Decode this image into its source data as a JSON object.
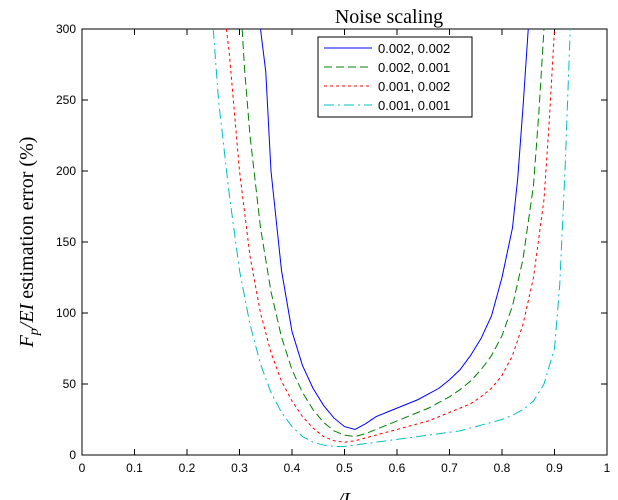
{
  "chart_data": {
    "type": "line",
    "xlim": [
      0,
      1
    ],
    "ylim": [
      0,
      300
    ],
    "xticks": [
      0,
      0.1,
      0.2,
      0.3,
      0.4,
      0.5,
      0.6,
      0.7,
      0.8,
      0.9,
      1
    ],
    "yticks": [
      0,
      50,
      100,
      150,
      200,
      250,
      300
    ],
    "xtick_labels": [
      "0",
      "0.1",
      "0.2",
      "0.3",
      "0.4",
      "0.5",
      "0.6",
      "0.7",
      "0.8",
      "0.9",
      "1"
    ],
    "ytick_labels": [
      "0",
      "50",
      "100",
      "150",
      "200",
      "250",
      "300"
    ],
    "ylabel": {
      "main": "F",
      "sub": "p",
      "mid": "/EI",
      "rest": " estimation error (%)"
    },
    "xlabel_partial": "/L",
    "legend": {
      "title": "Noise scaling",
      "position": "top-right"
    },
    "series": [
      {
        "name": "0.002, 0.002",
        "color": "#0000ff",
        "dash": "solid",
        "x": [
          0.34,
          0.35,
          0.36,
          0.38,
          0.4,
          0.42,
          0.44,
          0.46,
          0.48,
          0.5,
          0.52,
          0.54,
          0.56,
          0.58,
          0.6,
          0.62,
          0.64,
          0.66,
          0.68,
          0.7,
          0.72,
          0.74,
          0.76,
          0.78,
          0.8,
          0.82,
          0.83,
          0.84,
          0.85
        ],
        "y": [
          300,
          270,
          200,
          130,
          87,
          63,
          47,
          35,
          26,
          20,
          18,
          22,
          27,
          30,
          33,
          36,
          39,
          43,
          47,
          53,
          60,
          70,
          82,
          98,
          125,
          160,
          195,
          245,
          300
        ]
      },
      {
        "name": "0.002, 0.001",
        "color": "#008000",
        "dash": "8,4",
        "x": [
          0.305,
          0.31,
          0.32,
          0.34,
          0.36,
          0.38,
          0.4,
          0.42,
          0.44,
          0.46,
          0.48,
          0.5,
          0.52,
          0.54,
          0.56,
          0.58,
          0.6,
          0.62,
          0.64,
          0.66,
          0.68,
          0.7,
          0.72,
          0.74,
          0.76,
          0.78,
          0.8,
          0.82,
          0.84,
          0.86,
          0.87,
          0.88
        ],
        "y": [
          300,
          270,
          225,
          160,
          115,
          83,
          60,
          44,
          32,
          23,
          17,
          14,
          13,
          15,
          18,
          21,
          24,
          27,
          30,
          33,
          37,
          41,
          46,
          52,
          60,
          70,
          84,
          105,
          138,
          190,
          240,
          300
        ]
      },
      {
        "name": "0.001, 0.002",
        "color": "#ff0000",
        "dash": "3,3",
        "x": [
          0.275,
          0.28,
          0.3,
          0.32,
          0.34,
          0.36,
          0.38,
          0.4,
          0.42,
          0.44,
          0.46,
          0.48,
          0.5,
          0.52,
          0.54,
          0.56,
          0.58,
          0.6,
          0.62,
          0.64,
          0.66,
          0.68,
          0.7,
          0.72,
          0.74,
          0.76,
          0.78,
          0.8,
          0.82,
          0.84,
          0.86,
          0.88,
          0.89,
          0.9
        ],
        "y": [
          300,
          285,
          200,
          140,
          100,
          72,
          52,
          38,
          27,
          19,
          13,
          10,
          9,
          10,
          12,
          14,
          16,
          18,
          20,
          22,
          24,
          27,
          30,
          33,
          36,
          41,
          47,
          56,
          70,
          92,
          125,
          180,
          235,
          300
        ]
      },
      {
        "name": "0.001, 0.001",
        "color": "#00bfbf",
        "dash": "10,4,2,4",
        "x": [
          0.25,
          0.26,
          0.28,
          0.3,
          0.32,
          0.34,
          0.36,
          0.38,
          0.4,
          0.42,
          0.44,
          0.46,
          0.48,
          0.5,
          0.52,
          0.54,
          0.56,
          0.58,
          0.6,
          0.62,
          0.64,
          0.66,
          0.68,
          0.7,
          0.72,
          0.74,
          0.76,
          0.78,
          0.8,
          0.82,
          0.84,
          0.86,
          0.88,
          0.9,
          0.91,
          0.92,
          0.93
        ],
        "y": [
          300,
          250,
          185,
          130,
          92,
          64,
          44,
          30,
          20,
          13,
          9,
          7,
          6,
          6,
          7,
          8,
          9,
          10,
          11,
          12,
          13,
          14,
          15,
          16,
          17,
          19,
          21,
          23,
          25,
          28,
          32,
          38,
          50,
          75,
          120,
          200,
          300
        ]
      }
    ]
  }
}
